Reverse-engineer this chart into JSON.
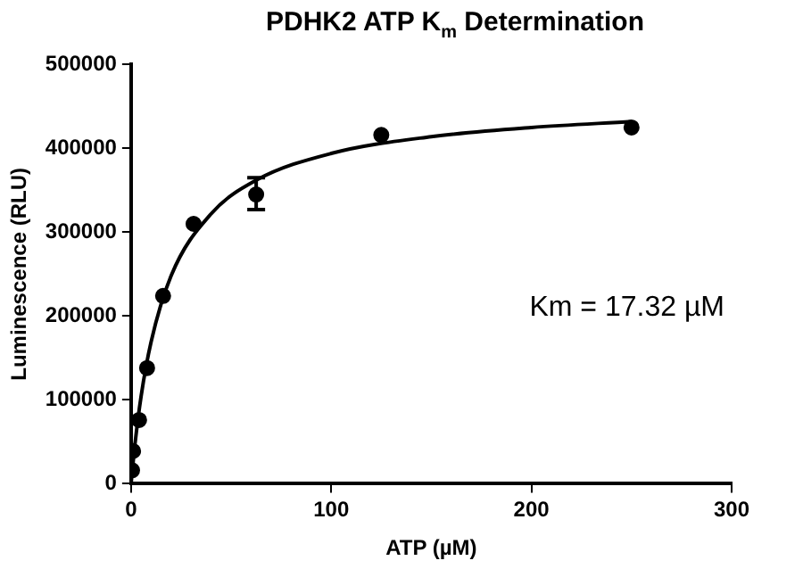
{
  "chart_data": {
    "type": "scatter",
    "title": "PDHK2 ATP K$_{m}$ Determination",
    "xlabel": "ATP (µM)",
    "ylabel": "Luminescence (RLU)",
    "annotations": [
      "Km = 17.32 µM"
    ],
    "series": [
      {
        "type": "scatter",
        "marker": "circle",
        "color": "#000000",
        "x": [
          0.5,
          1,
          4,
          8,
          16,
          31.25,
          62.5,
          125,
          250
        ],
        "values": [
          16000,
          39000,
          76000,
          138000,
          224000,
          310000,
          345000,
          416000,
          425000
        ],
        "errors": [
          null,
          null,
          null,
          null,
          null,
          null,
          [
            327000,
            365000
          ],
          null,
          null
        ]
      },
      {
        "type": "line",
        "marker": "none",
        "color": "#000000",
        "x": [
          0,
          2,
          5,
          10,
          20,
          40,
          62.5,
          100,
          150,
          200,
          250
        ],
        "values": [
          0,
          48000,
          104000,
          169000,
          248000,
          322000,
          362000,
          394000,
          414000,
          425000,
          432000
        ]
      }
    ],
    "xlim": [
      0,
      300
    ],
    "xticks": [
      0,
      100,
      200,
      300
    ],
    "ylim": [
      0,
      500000
    ],
    "yticks": [
      0,
      100000,
      200000,
      300000,
      400000,
      500000
    ],
    "grid": false,
    "legend": false,
    "line_style": "solid"
  }
}
